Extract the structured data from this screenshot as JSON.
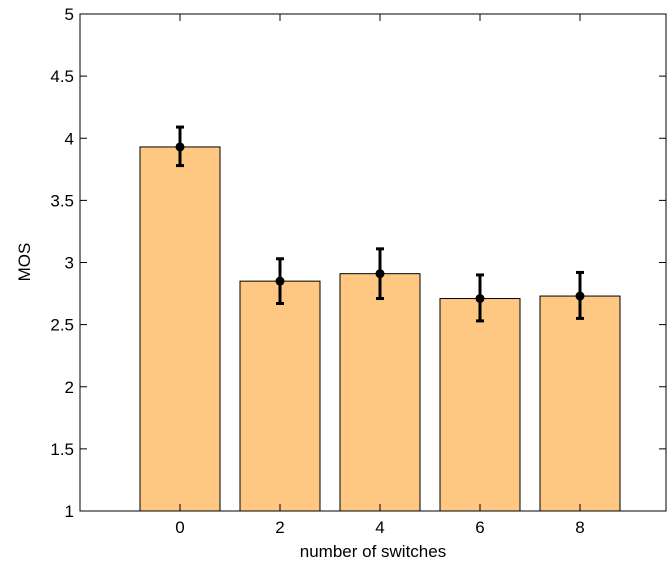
{
  "chart_data": {
    "type": "bar",
    "title": "",
    "xlabel": "number of switches",
    "ylabel": "MOS",
    "categories": [
      "0",
      "2",
      "4",
      "6",
      "8"
    ],
    "values": [
      3.93,
      2.85,
      2.91,
      2.71,
      2.73
    ],
    "error_low": [
      3.78,
      2.67,
      2.71,
      2.53,
      2.55
    ],
    "error_high": [
      4.09,
      3.03,
      3.11,
      2.9,
      2.92
    ],
    "ylim": [
      1,
      5
    ],
    "yticks": [
      "1",
      "1.5",
      "2",
      "2.5",
      "3",
      "3.5",
      "4",
      "4.5",
      "5"
    ],
    "grid": false,
    "bar_color": "#FEC882",
    "bar_edge_color": "#000000",
    "marker_color": "#000000"
  }
}
